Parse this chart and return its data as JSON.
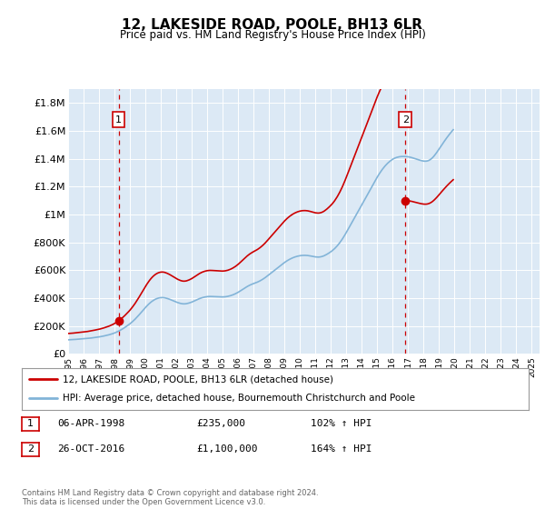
{
  "title": "12, LAKESIDE ROAD, POOLE, BH13 6LR",
  "subtitle": "Price paid vs. HM Land Registry's House Price Index (HPI)",
  "bg_color": "#dce9f5",
  "hpi_color": "#82b4d8",
  "price_color": "#cc0000",
  "ylim": [
    0,
    1900000
  ],
  "yticks": [
    0,
    200000,
    400000,
    600000,
    800000,
    1000000,
    1200000,
    1400000,
    1600000,
    1800000
  ],
  "ytick_labels": [
    "£0",
    "£200K",
    "£400K",
    "£600K",
    "£800K",
    "£1M",
    "£1.2M",
    "£1.4M",
    "£1.6M",
    "£1.8M"
  ],
  "sale1_date": 1998.27,
  "sale1_price": 235000,
  "sale1_label": "1",
  "sale2_date": 2016.82,
  "sale2_price": 1100000,
  "sale2_label": "2",
  "legend_line1": "12, LAKESIDE ROAD, POOLE, BH13 6LR (detached house)",
  "legend_line2": "HPI: Average price, detached house, Bournemouth Christchurch and Poole",
  "table_row1": [
    "1",
    "06-APR-1998",
    "£235,000",
    "102% ↑ HPI"
  ],
  "table_row2": [
    "2",
    "26-OCT-2016",
    "£1,100,000",
    "164% ↑ HPI"
  ],
  "footer": "Contains HM Land Registry data © Crown copyright and database right 2024.\nThis data is licensed under the Open Government Licence v3.0.",
  "hpi_monthly": [
    116.7,
    117.2,
    117.9,
    118.5,
    119.0,
    119.8,
    120.5,
    121.4,
    122.2,
    123.0,
    123.8,
    124.5,
    125.3,
    126.1,
    127.0,
    128.2,
    129.5,
    130.8,
    132.0,
    133.5,
    135.0,
    136.5,
    138.0,
    139.5,
    141.0,
    143.0,
    145.0,
    147.0,
    149.5,
    152.0,
    154.5,
    157.0,
    159.8,
    163.0,
    166.5,
    170.0,
    174.0,
    178.5,
    183.5,
    188.5,
    194.0,
    200.0,
    206.5,
    213.0,
    220.0,
    227.5,
    235.0,
    243.0,
    251.0,
    260.0,
    269.5,
    279.5,
    290.0,
    301.5,
    313.0,
    325.0,
    337.5,
    350.0,
    362.5,
    375.0,
    387.5,
    399.0,
    410.0,
    420.5,
    430.0,
    438.5,
    446.0,
    452.5,
    458.0,
    462.5,
    466.0,
    468.5,
    470.0,
    470.5,
    470.0,
    468.5,
    466.0,
    463.0,
    459.5,
    455.5,
    451.0,
    446.5,
    442.0,
    437.5,
    433.0,
    429.0,
    425.5,
    422.5,
    420.0,
    418.5,
    418.0,
    418.5,
    420.0,
    422.5,
    425.5,
    429.0,
    433.0,
    437.5,
    442.5,
    447.5,
    452.5,
    457.5,
    462.0,
    466.0,
    469.5,
    472.5,
    475.0,
    477.0,
    478.5,
    479.5,
    480.0,
    480.0,
    479.5,
    479.0,
    478.5,
    478.0,
    477.5,
    477.0,
    476.5,
    476.0,
    476.0,
    476.5,
    477.5,
    479.0,
    481.0,
    483.5,
    486.5,
    490.0,
    494.0,
    498.5,
    503.5,
    509.0,
    515.0,
    521.5,
    528.5,
    535.5,
    542.5,
    549.5,
    556.5,
    563.0,
    569.0,
    574.5,
    579.5,
    584.0,
    588.0,
    592.0,
    596.0,
    600.5,
    605.5,
    611.0,
    617.0,
    623.5,
    630.5,
    638.0,
    646.0,
    654.5,
    663.0,
    671.5,
    680.0,
    688.5,
    697.0,
    705.5,
    714.0,
    722.5,
    731.0,
    739.5,
    748.0,
    756.5,
    764.5,
    772.0,
    779.0,
    785.5,
    791.5,
    797.0,
    802.0,
    806.5,
    810.5,
    814.0,
    817.0,
    819.5,
    821.5,
    823.0,
    824.0,
    824.5,
    824.5,
    824.0,
    823.0,
    821.5,
    819.5,
    817.5,
    815.5,
    813.5,
    811.5,
    810.5,
    810.0,
    810.5,
    812.0,
    814.5,
    818.0,
    822.5,
    828.0,
    834.0,
    840.5,
    847.5,
    855.0,
    863.0,
    872.0,
    882.0,
    893.0,
    905.0,
    918.0,
    932.0,
    947.0,
    963.0,
    980.0,
    998.0,
    1016.5,
    1035.5,
    1055.0,
    1074.5,
    1094.0,
    1113.5,
    1133.0,
    1152.0,
    1171.0,
    1190.0,
    1209.0,
    1228.0,
    1247.0,
    1266.5,
    1286.0,
    1305.5,
    1325.0,
    1344.5,
    1364.0,
    1383.5,
    1403.0,
    1422.5,
    1442.0,
    1461.5,
    1480.0,
    1497.5,
    1514.5,
    1530.5,
    1545.5,
    1559.5,
    1572.5,
    1584.5,
    1595.5,
    1605.5,
    1614.5,
    1622.5,
    1629.5,
    1635.5,
    1640.5,
    1644.5,
    1647.5,
    1650.0,
    1651.5,
    1652.5,
    1653.0,
    1653.0,
    1652.5,
    1651.5,
    1650.0,
    1648.0,
    1645.5,
    1642.5,
    1639.0,
    1635.5,
    1632.0,
    1628.5,
    1625.0,
    1621.5,
    1618.5,
    1616.0,
    1614.0,
    1613.0,
    1613.5,
    1615.5,
    1619.5,
    1625.5,
    1633.5,
    1643.5,
    1655.5,
    1669.0,
    1683.5,
    1699.0,
    1715.0,
    1731.0,
    1747.5,
    1763.5,
    1779.0,
    1794.5,
    1809.5,
    1824.0,
    1838.0,
    1851.5,
    1864.5,
    1877.0
  ],
  "start_year": 1995,
  "start_month": 1
}
